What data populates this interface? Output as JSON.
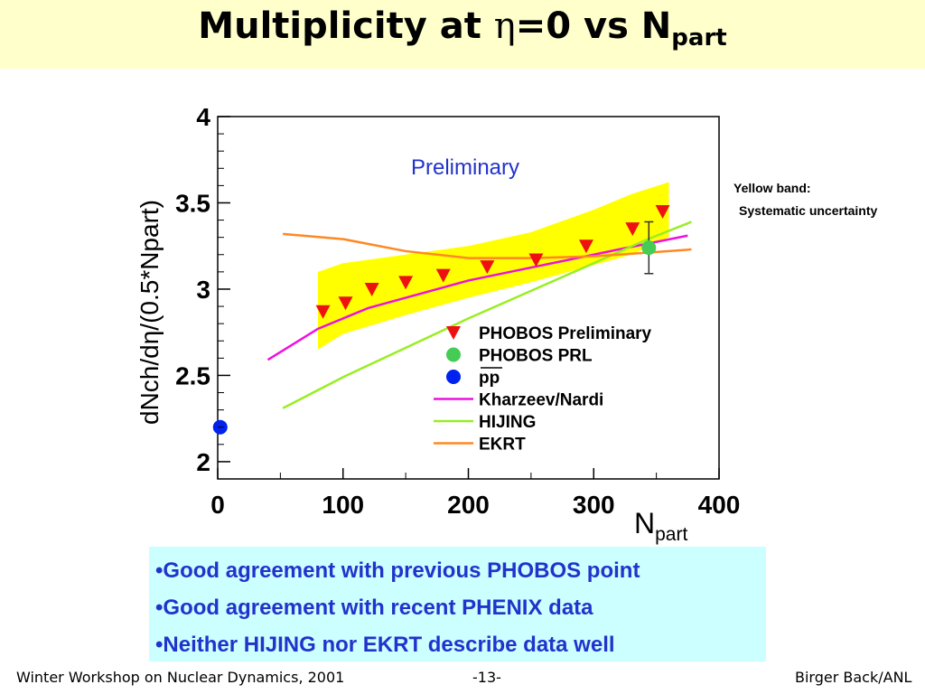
{
  "slide": {
    "title_main": "Multiplicity at ",
    "title_eta": "η",
    "title_mid": "=0 vs N",
    "title_sub": "part",
    "note_line1": "Yellow band:",
    "note_line2": "Systematic uncertainty",
    "bullets": [
      "•Good agreement with previous PHOBOS point",
      "•Good agreement with recent PHENIX data",
      "•Neither HIJING nor EKRT describe data well"
    ],
    "footer_left": "Winter Workshop on Nuclear Dynamics, 2001",
    "footer_center": "-13-",
    "footer_right": "Birger Back/ANL"
  },
  "chart_data": {
    "type": "scatter",
    "annotation": "Preliminary",
    "xlabel_main": "N",
    "xlabel_sub": "part",
    "ylabel": "dNch/dη/(0.5*Npart)",
    "xlim": [
      0,
      400
    ],
    "ylim": [
      1.9,
      4
    ],
    "x_ticks": [
      "0",
      "100",
      "200",
      "300",
      "400"
    ],
    "y_ticks": [
      "2",
      "2.5",
      "3",
      "3.5",
      "4"
    ],
    "legend_position": "bottom-right",
    "series": [
      {
        "name": "PHOBOS Preliminary",
        "marker": "triangle-down",
        "color": "#ee1111",
        "x": [
          84,
          102,
          123,
          150,
          180,
          215,
          254,
          294,
          331,
          355
        ],
        "y": [
          2.87,
          2.92,
          3.0,
          3.04,
          3.08,
          3.13,
          3.17,
          3.25,
          3.35,
          3.45
        ]
      },
      {
        "name": "PHOBOS PRL",
        "marker": "circle",
        "color": "#44cc55",
        "x": [
          344
        ],
        "y": [
          3.24
        ],
        "y_err_low": [
          3.09
        ],
        "y_err_high": [
          3.39
        ]
      },
      {
        "name": "pp",
        "marker": "circle",
        "color": "#0022ee",
        "x": [
          2
        ],
        "y": [
          2.2
        ]
      },
      {
        "name": "Kharzeev/Nardi",
        "type": "line",
        "color": "#ee11dd",
        "x": [
          40,
          80,
          120,
          160,
          200,
          240,
          280,
          320,
          375
        ],
        "y": [
          2.59,
          2.77,
          2.89,
          2.97,
          3.05,
          3.11,
          3.17,
          3.23,
          3.31
        ]
      },
      {
        "name": "HIJING",
        "type": "line",
        "color": "#99ee22",
        "x": [
          52,
          100,
          150,
          200,
          250,
          300,
          340,
          378
        ],
        "y": [
          2.31,
          2.49,
          2.66,
          2.83,
          2.99,
          3.15,
          3.28,
          3.39
        ]
      },
      {
        "name": "EKRT",
        "type": "line",
        "color": "#ff8822",
        "x": [
          52,
          100,
          150,
          200,
          250,
          300,
          340,
          378
        ],
        "y": [
          3.32,
          3.29,
          3.22,
          3.18,
          3.18,
          3.19,
          3.21,
          3.23
        ]
      },
      {
        "name": "Systematic uncertainty band",
        "type": "band",
        "color": "#ffff00",
        "x": [
          80,
          100,
          150,
          200,
          250,
          300,
          330,
          360
        ],
        "y_low": [
          2.65,
          2.74,
          2.85,
          2.95,
          3.04,
          3.14,
          3.2,
          3.3
        ],
        "y_high": [
          3.1,
          3.15,
          3.2,
          3.25,
          3.33,
          3.46,
          3.55,
          3.62
        ]
      }
    ]
  }
}
